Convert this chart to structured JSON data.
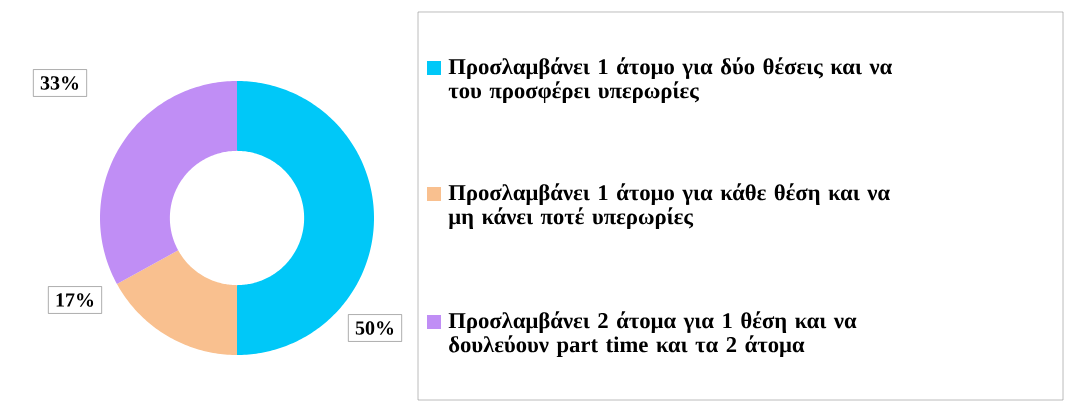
{
  "chart_data": {
    "type": "donut",
    "categories": [
      "Προσλαμβάνει 1 άτομο για δύο θέσεις και να του προσφέρει υπερωρίες",
      "Προσλαμβάνει 1 άτομο για κάθε θέση και να μη κάνει ποτέ υπερωρίες",
      "Προσλαμβάνει 2 άτομα για 1 θέση και να δουλεύουν part time και τα 2 άτομα"
    ],
    "values": [
      50,
      17,
      33
    ],
    "value_labels": [
      "50%",
      "17%",
      "33%"
    ],
    "colors": [
      "#00c8f8",
      "#f9c08f",
      "#c08ef5"
    ],
    "legend": "right"
  }
}
